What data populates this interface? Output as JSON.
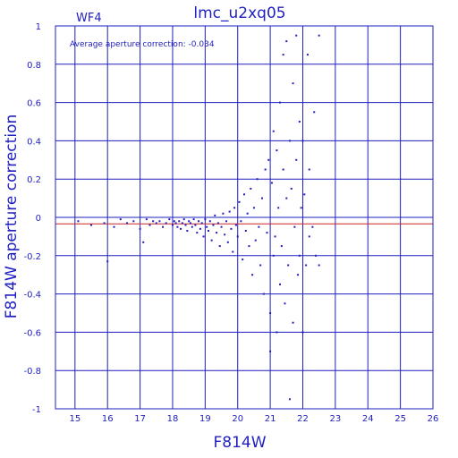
{
  "chart_data": {
    "type": "scatter",
    "title": "lmc_u2xq05",
    "chip_label": "WF4",
    "annotation": "Average aperture correction: -0.034",
    "xlabel": "F814W",
    "ylabel": "F814W aperture correction",
    "xlim": [
      14.4,
      26
    ],
    "ylim": [
      -1,
      1
    ],
    "xticks": [
      15,
      16,
      17,
      18,
      19,
      20,
      21,
      22,
      23,
      24,
      25,
      26
    ],
    "yticks": [
      -1,
      -0.8,
      -0.6,
      -0.4,
      -0.2,
      0,
      0.2,
      0.4,
      0.6,
      0.8,
      1
    ],
    "ytick_labels": [
      "-1",
      "-0.8",
      "-0.6",
      "-0.4",
      "-0.2",
      "0",
      "0.2",
      "0.4",
      "0.6",
      "0.8",
      "1"
    ],
    "grid": true,
    "reference_lines": [
      {
        "name": "zero",
        "y": 0,
        "color": "#1f1fbf"
      },
      {
        "name": "average",
        "y": -0.034,
        "color": "#cc2222"
      }
    ],
    "point_color": "#1f1fbf",
    "points": [
      [
        15.1,
        -0.02
      ],
      [
        15.5,
        -0.04
      ],
      [
        15.9,
        -0.03
      ],
      [
        16.0,
        -0.23
      ],
      [
        16.2,
        -0.05
      ],
      [
        16.4,
        -0.01
      ],
      [
        16.6,
        -0.03
      ],
      [
        16.8,
        -0.02
      ],
      [
        17.0,
        -0.06
      ],
      [
        17.1,
        -0.13
      ],
      [
        17.2,
        -0.01
      ],
      [
        17.3,
        -0.04
      ],
      [
        17.4,
        -0.02
      ],
      [
        17.5,
        -0.03
      ],
      [
        17.6,
        -0.02
      ],
      [
        17.7,
        -0.05
      ],
      [
        17.8,
        -0.03
      ],
      [
        17.9,
        -0.01
      ],
      [
        18.0,
        -0.04
      ],
      [
        18.05,
        -0.02
      ],
      [
        18.1,
        -0.03
      ],
      [
        18.15,
        -0.05
      ],
      [
        18.2,
        -0.02
      ],
      [
        18.25,
        -0.06
      ],
      [
        18.3,
        -0.03
      ],
      [
        18.35,
        -0.01
      ],
      [
        18.4,
        -0.04
      ],
      [
        18.45,
        -0.07
      ],
      [
        18.5,
        -0.02
      ],
      [
        18.55,
        -0.03
      ],
      [
        18.6,
        -0.05
      ],
      [
        18.65,
        -0.01
      ],
      [
        18.7,
        -0.04
      ],
      [
        18.75,
        -0.08
      ],
      [
        18.8,
        -0.02
      ],
      [
        18.85,
        -0.06
      ],
      [
        18.9,
        -0.03
      ],
      [
        18.95,
        -0.1
      ],
      [
        19.0,
        -0.01
      ],
      [
        19.05,
        -0.05
      ],
      [
        19.1,
        -0.07
      ],
      [
        19.15,
        -0.02
      ],
      [
        19.2,
        -0.12
      ],
      [
        19.25,
        -0.04
      ],
      [
        19.3,
        0.01
      ],
      [
        19.35,
        -0.08
      ],
      [
        19.4,
        -0.03
      ],
      [
        19.45,
        -0.15
      ],
      [
        19.5,
        -0.05
      ],
      [
        19.55,
        0.02
      ],
      [
        19.6,
        -0.09
      ],
      [
        19.65,
        -0.02
      ],
      [
        19.7,
        -0.13
      ],
      [
        19.75,
        0.03
      ],
      [
        19.8,
        -0.06
      ],
      [
        19.85,
        -0.18
      ],
      [
        19.9,
        0.05
      ],
      [
        19.95,
        -0.04
      ],
      [
        20.0,
        -0.1
      ],
      [
        20.05,
        0.08
      ],
      [
        20.1,
        -0.02
      ],
      [
        20.15,
        -0.22
      ],
      [
        20.2,
        0.12
      ],
      [
        20.25,
        -0.07
      ],
      [
        20.3,
        0.02
      ],
      [
        20.35,
        -0.15
      ],
      [
        20.4,
        0.15
      ],
      [
        20.45,
        -0.3
      ],
      [
        20.5,
        0.05
      ],
      [
        20.55,
        -0.12
      ],
      [
        20.6,
        0.2
      ],
      [
        20.65,
        -0.05
      ],
      [
        20.7,
        -0.25
      ],
      [
        20.75,
        0.1
      ],
      [
        20.8,
        -0.4
      ],
      [
        20.85,
        0.25
      ],
      [
        20.9,
        -0.08
      ],
      [
        20.95,
        0.3
      ],
      [
        21.0,
        -0.5
      ],
      [
        21.0,
        -0.7
      ],
      [
        21.05,
        0.18
      ],
      [
        21.1,
        -0.2
      ],
      [
        21.1,
        0.45
      ],
      [
        21.15,
        -0.1
      ],
      [
        21.2,
        0.35
      ],
      [
        21.2,
        -0.6
      ],
      [
        21.25,
        0.05
      ],
      [
        21.3,
        -0.35
      ],
      [
        21.3,
        0.6
      ],
      [
        21.35,
        -0.15
      ],
      [
        21.4,
        0.25
      ],
      [
        21.4,
        0.85
      ],
      [
        21.45,
        -0.45
      ],
      [
        21.5,
        0.1
      ],
      [
        21.5,
        0.92
      ],
      [
        21.55,
        -0.25
      ],
      [
        21.6,
        0.4
      ],
      [
        21.6,
        -0.95
      ],
      [
        21.65,
        0.15
      ],
      [
        21.7,
        -0.55
      ],
      [
        21.7,
        0.7
      ],
      [
        21.75,
        -0.05
      ],
      [
        21.8,
        0.3
      ],
      [
        21.8,
        0.95
      ],
      [
        21.85,
        -0.3
      ],
      [
        21.9,
        0.5
      ],
      [
        21.9,
        -0.2
      ],
      [
        21.95,
        0.05
      ],
      [
        22.0,
        -0.6
      ],
      [
        22.0,
        0.4
      ],
      [
        22.05,
        0.12
      ],
      [
        22.1,
        -0.25
      ],
      [
        22.15,
        0.85
      ],
      [
        22.2,
        0.25
      ],
      [
        22.2,
        -0.1
      ],
      [
        22.3,
        -0.05
      ],
      [
        22.35,
        0.55
      ],
      [
        22.4,
        -0.2
      ],
      [
        22.5,
        0.95
      ],
      [
        22.5,
        -0.25
      ]
    ]
  }
}
